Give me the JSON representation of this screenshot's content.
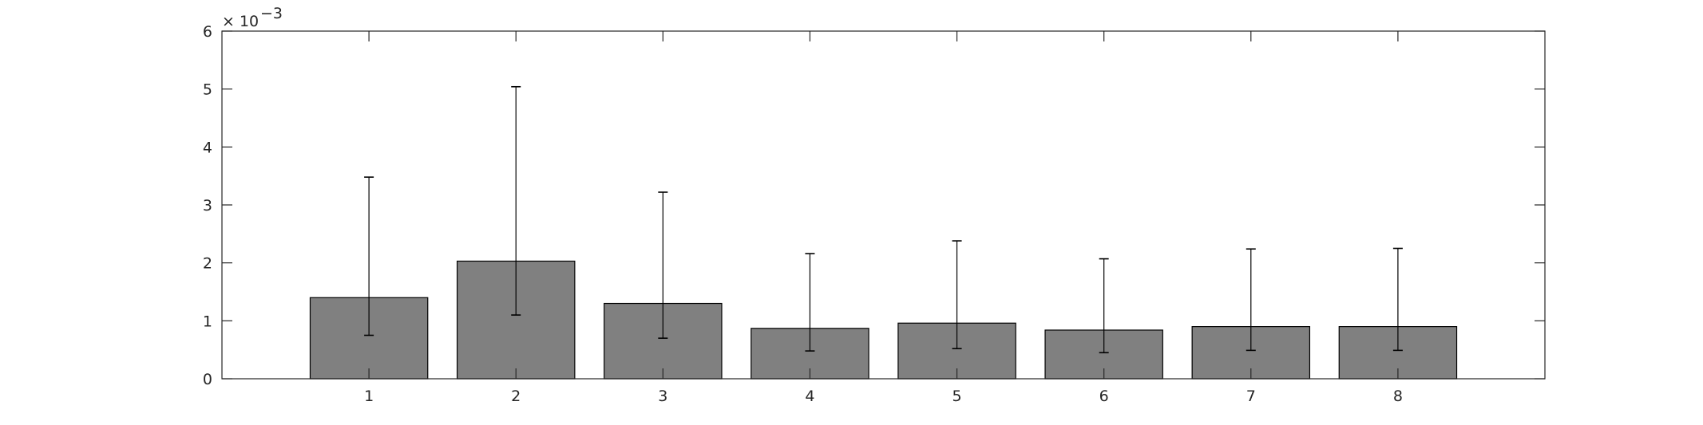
{
  "chart_data": {
    "type": "bar",
    "title": "",
    "xlabel": "",
    "ylabel": "",
    "categories": [
      "1",
      "2",
      "3",
      "4",
      "5",
      "6",
      "7",
      "8"
    ],
    "values": [
      0.0014,
      0.00203,
      0.0013,
      0.00087,
      0.00096,
      0.00084,
      0.0009,
      0.0009
    ],
    "error_low": [
      0.00075,
      0.0011,
      0.0007,
      0.00048,
      0.00052,
      0.00045,
      0.00049,
      0.00049
    ],
    "error_high": [
      0.00348,
      0.00504,
      0.00322,
      0.00216,
      0.00238,
      0.00207,
      0.00224,
      0.00225
    ],
    "xlim": [
      0,
      9
    ],
    "ylim": [
      0,
      0.006
    ],
    "yticks": [
      "0",
      "1",
      "2",
      "3",
      "4",
      "5",
      "6"
    ],
    "y_exponent_base": "× 10",
    "y_exponent": "−3",
    "grid": false,
    "legend": "none",
    "bar_color": "#808080",
    "bar_edge_color": "#000000",
    "axis_color": "#262626"
  }
}
